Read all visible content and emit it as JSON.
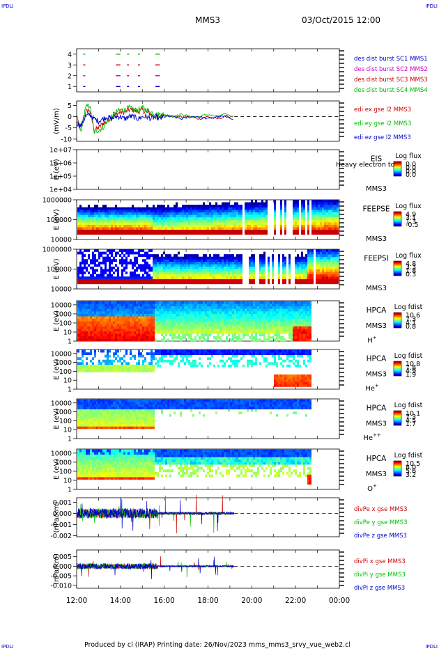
{
  "page": {
    "corner_tl": "IPDLI",
    "corner_tr": "IPDLI",
    "corner_bl": "IPDLI",
    "corner_br": "IPDLI",
    "title": "MMS3",
    "date": "03/Oct/2015 12:00",
    "footer": "Produced by cl (IRAP)    Printing date: 26/Nov/2023    mms_mms3_srvy_vue_web2.cl"
  },
  "colors": {
    "mms1": "#0000cc",
    "mms2": "#cc00cc",
    "mms3": "#cc0000",
    "mms4": "#00bb00",
    "x": "#cc0000",
    "y": "#00bb00",
    "z": "#0000cc"
  },
  "chart_data": [
    {
      "id": "burst",
      "type": "scatter",
      "yticks": [
        "1",
        "2",
        "3",
        "4"
      ],
      "ylim": [
        0.5,
        4.5
      ],
      "legend": [
        "des dist burst SC1 MMS1",
        "des dist burst SC2 MMS2",
        "des dist burst SC3 MMS3",
        "des dist burst SC4 MMS4"
      ],
      "series": [
        {
          "name": "des dist burst SC1 MMS1",
          "y": 1,
          "x": [
            12.3,
            13.8,
            13.9,
            14.3,
            14.8,
            15.6,
            15.7
          ]
        },
        {
          "name": "des dist burst SC2 MMS2",
          "y": 2,
          "x": [
            12.3,
            13.8,
            13.9,
            14.3,
            14.8,
            15.6,
            15.7
          ]
        },
        {
          "name": "des dist burst SC3 MMS3",
          "y": 3,
          "x": [
            12.3,
            13.8,
            13.9,
            14.3,
            14.8,
            15.6,
            15.7
          ]
        },
        {
          "name": "des dist burst SC4 MMS4",
          "y": 4,
          "x": [
            12.3,
            13.8,
            13.9,
            14.3,
            14.8,
            15.6,
            15.7
          ]
        }
      ]
    },
    {
      "id": "edi",
      "type": "line",
      "ylabel": "(mV/m)",
      "yticks": [
        "-10",
        "-5",
        "0",
        "5"
      ],
      "ylim": [
        -11,
        7
      ],
      "legend": [
        "edi ex gse l2 MMS3",
        "edi ey gse l2 MMS3",
        "edi ez gse l2 MMS3"
      ],
      "x": [
        12.0,
        12.2,
        12.4,
        12.6,
        12.8,
        13.0,
        13.2,
        13.4,
        13.6,
        13.8,
        14.0,
        14.2,
        14.4,
        14.6,
        14.8,
        15.0,
        15.2,
        15.4,
        15.6,
        15.8,
        16.0,
        16.4,
        16.8,
        17.2,
        17.6,
        18.0,
        18.4,
        18.8,
        19.2
      ],
      "series": [
        {
          "name": "edi ex gse l2 MMS3",
          "values": [
            -2,
            -5,
            2,
            3,
            -6,
            -5,
            -3,
            -2,
            0,
            1,
            2,
            2,
            3,
            3,
            2,
            3,
            2,
            1,
            0,
            0,
            1,
            0,
            0,
            0,
            -1,
            0,
            -1,
            0,
            0
          ]
        },
        {
          "name": "edi ey gse l2 MMS3",
          "values": [
            0,
            -7,
            4,
            5,
            -7,
            -6,
            -5,
            -2,
            0,
            2,
            3,
            3,
            4,
            3,
            3,
            4,
            3,
            2,
            1,
            1,
            1,
            0,
            1,
            0,
            0,
            1,
            0,
            1,
            0
          ]
        },
        {
          "name": "edi ez gse l2 MMS3",
          "values": [
            -3,
            -4,
            0,
            1,
            -1,
            -2,
            -1,
            0,
            -1,
            0,
            0,
            -1,
            0,
            0,
            -1,
            0,
            0,
            -1,
            0,
            -1,
            0,
            0,
            -1,
            0,
            0,
            -1,
            0,
            0,
            -1
          ]
        }
      ]
    },
    {
      "id": "eis",
      "type": "heatmap",
      "ylabel": "E (eV)",
      "yticks": [
        "1e+04",
        "1e+05",
        "1e+06",
        "1e+07"
      ],
      "log_range": [
        4,
        7
      ],
      "label": "EIS",
      "label2": "MMS3",
      "overlay": "Heavy electron to",
      "cbar_title": "Log flux",
      "cbar_ticks": [
        "0.0",
        "0.0",
        "0.0",
        "0.0"
      ]
    },
    {
      "id": "feepse",
      "type": "heatmap",
      "ylabel": "E (eV)",
      "yticks": [
        "10000",
        "100000",
        "1000000"
      ],
      "log_range": [
        4,
        6
      ],
      "label": "FEEPSE",
      "label2": "MMS3",
      "cbar_title": "Log flux",
      "cbar_ticks": [
        "4.9",
        "3.1",
        "1.3",
        "-0.5"
      ]
    },
    {
      "id": "feepsi",
      "type": "heatmap",
      "ylabel": "E (eV)",
      "yticks": [
        "10000",
        "100000",
        "1000000"
      ],
      "log_range": [
        4,
        6
      ],
      "label": "FEEPSI",
      "label2": "MMS3",
      "cbar_title": "Log flux",
      "cbar_ticks": [
        "4.8",
        "3.3",
        "1.8",
        "0.3"
      ]
    },
    {
      "id": "hpca_h",
      "type": "heatmap",
      "ylabel": "E (eV)",
      "yticks": [
        "1",
        "10",
        "100",
        "1000",
        "10000"
      ],
      "log_range": [
        0,
        4.45
      ],
      "label": "HPCA",
      "label2": "MMS3",
      "species": "H",
      "charge": "+",
      "cbar_title": "Log fdist",
      "cbar_ticks": [
        "10.6",
        "7.3",
        "4.1",
        "0.8"
      ]
    },
    {
      "id": "hpca_he",
      "type": "heatmap",
      "ylabel": "E (eV)",
      "yticks": [
        "1",
        "10",
        "100",
        "1000",
        "10000"
      ],
      "log_range": [
        0,
        4.45
      ],
      "label": "HPCA",
      "label2": "MMS3",
      "species": "He",
      "charge": "+",
      "cbar_title": "Log fdist",
      "cbar_ticks": [
        "10.8",
        "7.8",
        "4.9",
        "1.9"
      ]
    },
    {
      "id": "hpca_he2",
      "type": "heatmap",
      "ylabel": "E (eV)",
      "yticks": [
        "1",
        "10",
        "100",
        "1000",
        "10000"
      ],
      "log_range": [
        0,
        4.45
      ],
      "label": "HPCA",
      "label2": "MMS3",
      "species": "He",
      "charge": "++",
      "cbar_title": "Log fdist",
      "cbar_ticks": [
        "10.1",
        "7.3",
        "4.5",
        "1.7"
      ]
    },
    {
      "id": "hpca_o",
      "type": "heatmap",
      "ylabel": "E (eV)",
      "yticks": [
        "1",
        "10",
        "100",
        "1000",
        "10000"
      ],
      "log_range": [
        0,
        4.45
      ],
      "label": "HPCA",
      "label2": "MMS3",
      "species": "O",
      "charge": "+",
      "cbar_title": "Log fdist",
      "cbar_ticks": [
        "10.5",
        "8.0",
        "5.6",
        "3.2"
      ]
    },
    {
      "id": "divpe",
      "type": "line",
      "ylabel": "(nPa/km)",
      "yticks": [
        "-0.002",
        "-0.001",
        "0.000",
        "0.001"
      ],
      "ylim": [
        -0.0021,
        0.0014
      ],
      "legend": [
        "divPe x gse MMS3",
        "divPe y gse MMS3",
        "divPe z gse MMS3"
      ]
    },
    {
      "id": "divpi",
      "type": "line",
      "ylabel": "(nPa/km)",
      "yticks": [
        "-0.010",
        "-0.005",
        "0.000",
        "0.005"
      ],
      "ylim": [
        -0.0115,
        0.0085
      ],
      "legend": [
        "divPi x gse MMS3",
        "divPi y gse MMS3",
        "divPi z gse MMS3"
      ]
    }
  ],
  "time_axis": {
    "ticks": [
      "12:00",
      "14:00",
      "16:00",
      "18:00",
      "20:00",
      "22:00",
      "00:00"
    ],
    "range_hours": [
      12,
      24
    ]
  }
}
